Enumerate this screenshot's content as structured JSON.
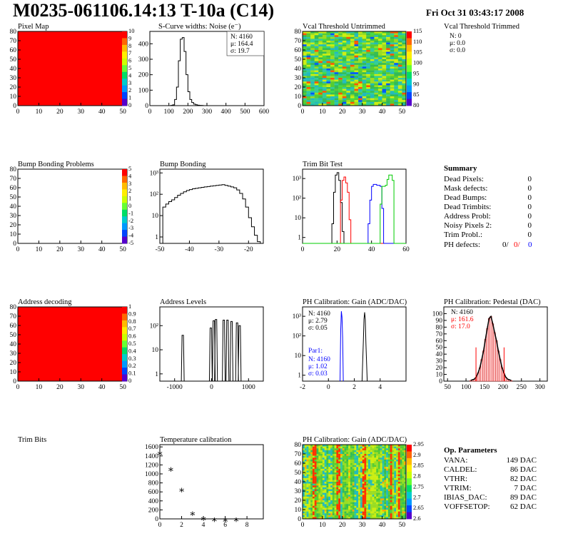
{
  "header": {
    "title": "M0235-061106.14:13 T-10a (C14)",
    "date": "Fri Oct 31 03:43:17 2008"
  },
  "colors": {
    "red": "#ff0000",
    "blue": "#0000ff",
    "green": "#00cc00",
    "black": "#000000"
  },
  "panels": {
    "pixel_map": {
      "title": "Pixel Map",
      "xticks": [
        "0",
        "10",
        "20",
        "30",
        "40",
        "50"
      ],
      "yticks": [
        "0",
        "10",
        "20",
        "30",
        "40",
        "50",
        "60",
        "70",
        "80"
      ],
      "palette_labels": [
        "10",
        "9",
        "8",
        "7",
        "6",
        "5",
        "4",
        "3",
        "2",
        "1",
        "0"
      ]
    },
    "scurve": {
      "title": "S-Curve widths: Noise (e⁻)",
      "stats": [
        "N: 4160",
        "μ: 164.4",
        "σ: 19.7"
      ],
      "xticks": [
        "0",
        "100",
        "200",
        "300",
        "400",
        "500",
        "600"
      ],
      "yticks": [
        "0",
        "100",
        "200",
        "300",
        "400"
      ]
    },
    "vcal_untrimmed": {
      "title": "Vcal Threshold Untrimmed",
      "xticks": [
        "0",
        "10",
        "20",
        "30",
        "40",
        "50"
      ],
      "yticks": [
        "0",
        "10",
        "20",
        "30",
        "40",
        "50",
        "60",
        "70",
        "80"
      ],
      "palette_labels": [
        "115",
        "110",
        "105",
        "100",
        "95",
        "90",
        "85",
        "80"
      ]
    },
    "vcal_trimmed": {
      "title": "Vcal Threshold Trimmed",
      "stats": [
        "N:    0",
        "μ:  0.0",
        "σ:  0.0"
      ]
    },
    "bump_problems": {
      "title": "Bump Bonding Problems",
      "xticks": [
        "0",
        "10",
        "20",
        "30",
        "40",
        "50"
      ],
      "yticks": [
        "0",
        "10",
        "20",
        "30",
        "40",
        "50",
        "60",
        "70",
        "80"
      ],
      "palette_labels": [
        "5",
        "4",
        "3",
        "2",
        "1",
        "0",
        "-1",
        "-2",
        "-3",
        "-4",
        "-5"
      ]
    },
    "bump_bonding": {
      "title": "Bump Bonding",
      "xticks": [
        "-50",
        "-40",
        "-30",
        "-20"
      ],
      "yticks": [
        "1",
        "10",
        "10²",
        "10³"
      ]
    },
    "trim_bit_test": {
      "title": "Trim Bit Test",
      "xticks": [
        "0",
        "20",
        "40",
        "60"
      ],
      "yticks": [
        "1",
        "10",
        "10²",
        "10³"
      ]
    },
    "summary": {
      "title": "Summary",
      "rows": [
        {
          "label": "Dead Pixels:",
          "value": "0"
        },
        {
          "label": "Mask defects:",
          "value": "0"
        },
        {
          "label": "Dead Bumps:",
          "value": "0"
        },
        {
          "label": "Dead Trimbits:",
          "value": "0"
        },
        {
          "label": "Address Probl:",
          "value": "0"
        },
        {
          "label": "Noisy Pixels 2:",
          "value": "0"
        },
        {
          "label": "Trim Probl.:",
          "value": "0"
        }
      ],
      "ph_label": "PH defects:",
      "ph_values": [
        "0/",
        "0/",
        "0"
      ]
    },
    "address_decoding": {
      "title": "Address decoding",
      "xticks": [
        "0",
        "10",
        "20",
        "30",
        "40",
        "50"
      ],
      "yticks": [
        "0",
        "10",
        "20",
        "30",
        "40",
        "50",
        "60",
        "70",
        "80"
      ],
      "palette_labels": [
        "1",
        "0.9",
        "0.8",
        "0.7",
        "0.6",
        "0.5",
        "0.4",
        "0.3",
        "0.2",
        "0.1",
        "0"
      ]
    },
    "address_levels": {
      "title": "Address Levels",
      "xticks": [
        "-1000",
        "0",
        "1000"
      ],
      "yticks": [
        "1",
        "10",
        "10²"
      ]
    },
    "ph_gain": {
      "title": "PH Calibration: Gain (ADC/DAC)",
      "stats": [
        "N: 4160",
        "μ: 2.79",
        "σ: 0.05"
      ],
      "par_stats": [
        "Par1:",
        "N: 4160",
        "μ: 1.02",
        "σ: 0.03"
      ],
      "xticks": [
        "-2",
        "0",
        "2",
        "4"
      ],
      "yticks": [
        "1",
        "10",
        "10²",
        "10³"
      ]
    },
    "ph_pedestal": {
      "title": "PH Calibration: Pedestal (DAC)",
      "stats": [
        "N: 4160",
        "μ: 161.6",
        "σ: 17.0"
      ],
      "xticks": [
        "50",
        "100",
        "150",
        "200",
        "250",
        "300"
      ],
      "yticks": [
        "0",
        "10",
        "20",
        "30",
        "40",
        "50",
        "60",
        "70",
        "80",
        "90",
        "100"
      ]
    },
    "trim_bits": {
      "title": "Trim Bits"
    },
    "temperature": {
      "title": "Temperature calibration",
      "xticks": [
        "0",
        "2",
        "4",
        "6",
        "8"
      ],
      "yticks": [
        "0",
        "200",
        "400",
        "600",
        "800",
        "1000",
        "1200",
        "1400",
        "1600"
      ]
    },
    "ph_gain_map": {
      "title": "PH Calibration: Gain (ADC/DAC)",
      "xticks": [
        "0",
        "10",
        "20",
        "30",
        "40",
        "50"
      ],
      "yticks": [
        "0",
        "10",
        "20",
        "30",
        "40",
        "50",
        "60",
        "70",
        "80"
      ],
      "palette_labels": [
        "2.95",
        "2.9",
        "2.85",
        "2.8",
        "2.75",
        "2.7",
        "2.65",
        "2.6"
      ]
    },
    "op_params": {
      "title": "Op. Parameters",
      "rows": [
        {
          "label": "VANA:",
          "value": "149 DAC"
        },
        {
          "label": "CALDEL:",
          "value": "86 DAC"
        },
        {
          "label": "VTHR:",
          "value": "82 DAC"
        },
        {
          "label": "VTRIM:",
          "value": "7 DAC"
        },
        {
          "label": "IBIAS_DAC:",
          "value": "89 DAC"
        },
        {
          "label": "VOFFSETOP:",
          "value": "62 DAC"
        }
      ]
    }
  },
  "chart_data": [
    {
      "type": "heatmap",
      "title": "Pixel Map",
      "xlim": [
        0,
        52
      ],
      "ylim": [
        0,
        80
      ],
      "fill": "uniform red (value 10)",
      "zlim": [
        0,
        10
      ]
    },
    {
      "type": "bar",
      "title": "S-Curve widths: Noise (e⁻)",
      "xlim": [
        0,
        600
      ],
      "ylim": [
        0,
        480
      ],
      "x": [
        100,
        110,
        120,
        130,
        140,
        150,
        160,
        170,
        180,
        190,
        200,
        210,
        220,
        230,
        240,
        250,
        260,
        270,
        280
      ],
      "values": [
        0,
        2,
        5,
        40,
        120,
        290,
        430,
        440,
        350,
        200,
        90,
        40,
        20,
        10,
        6,
        3,
        2,
        1,
        0
      ]
    },
    {
      "type": "heatmap",
      "title": "Vcal Threshold Untrimmed",
      "xlim": [
        0,
        52
      ],
      "ylim": [
        0,
        80
      ],
      "zlim": [
        80,
        118
      ],
      "fill": "noisy values centred near 100"
    },
    {
      "type": "heatmap",
      "title": "Bump Bonding Problems",
      "xlim": [
        0,
        52
      ],
      "ylim": [
        0,
        80
      ],
      "zlim": [
        -5,
        5
      ],
      "fill": "empty"
    },
    {
      "type": "bar",
      "title": "Bump Bonding",
      "log_y": true,
      "xlim": [
        -50,
        -15
      ],
      "ylim": [
        0.5,
        1500
      ],
      "x": [
        -49,
        -48,
        -47,
        -46,
        -45,
        -44,
        -43,
        -42,
        -41,
        -40,
        -39,
        -38,
        -37,
        -36,
        -35,
        -34,
        -33,
        -32,
        -31,
        -30,
        -29,
        -28,
        -27,
        -26,
        -25,
        -24,
        -23,
        -22,
        -21,
        -20,
        -19,
        -18,
        -17
      ],
      "values": [
        25,
        35,
        45,
        55,
        70,
        90,
        110,
        130,
        150,
        165,
        180,
        190,
        200,
        210,
        220,
        230,
        240,
        250,
        260,
        270,
        280,
        260,
        240,
        220,
        200,
        160,
        110,
        60,
        25,
        8,
        3,
        1.2,
        0.6
      ]
    },
    {
      "type": "line",
      "title": "Trim Bit Test",
      "log_y": true,
      "xlim": [
        0,
        60
      ],
      "ylim": [
        0.5,
        3000
      ],
      "series": [
        {
          "color": "#000000",
          "x": [
            16,
            17,
            18,
            19,
            20,
            21,
            22,
            23,
            24
          ],
          "values": [
            0.5,
            5,
            200,
            1500,
            2000,
            800,
            60,
            2,
            0.5
          ]
        },
        {
          "color": "#ff0000",
          "x": [
            21,
            22,
            23,
            24,
            25,
            26,
            27,
            28
          ],
          "values": [
            0.5,
            80,
            800,
            1200,
            600,
            200,
            8,
            0.5
          ]
        },
        {
          "color": "#0000ff",
          "x": [
            37,
            38,
            39,
            40,
            41,
            42,
            43,
            44,
            45,
            46,
            47
          ],
          "values": [
            0.5,
            5,
            80,
            400,
            500,
            500,
            450,
            450,
            400,
            30,
            0.5
          ]
        },
        {
          "color": "#00cc00",
          "x": [
            44,
            45,
            46,
            47,
            48,
            49,
            50,
            51,
            52,
            53
          ],
          "values": [
            0.5,
            50,
            400,
            400,
            450,
            900,
            1500,
            1500,
            800,
            0.5
          ]
        }
      ]
    },
    {
      "type": "heatmap",
      "title": "Address decoding",
      "xlim": [
        0,
        52
      ],
      "ylim": [
        0,
        80
      ],
      "zlim": [
        0,
        1
      ],
      "fill": "uniform red (value 1)"
    },
    {
      "type": "bar",
      "title": "Address Levels",
      "log_y": true,
      "xlim": [
        -1400,
        1400
      ],
      "ylim": [
        0.5,
        600
      ],
      "x": [
        -780,
        -20,
        60,
        120,
        330,
        430,
        540,
        690,
        760
      ],
      "values": [
        40,
        80,
        160,
        180,
        170,
        170,
        150,
        130,
        100
      ]
    },
    {
      "type": "line",
      "title": "PH Calibration: Gain (ADC/DAC)",
      "log_y": true,
      "xlim": [
        -2,
        6
      ],
      "ylim": [
        0.5,
        3000
      ],
      "series": [
        {
          "color": "#000000",
          "x": [
            2.6,
            2.7,
            2.75,
            2.8,
            2.85,
            2.9,
            3.0
          ],
          "values": [
            0.5,
            50,
            700,
            1600,
            700,
            40,
            0.5
          ]
        },
        {
          "color": "#0000ff",
          "x": [
            0.9,
            0.95,
            1.0,
            1.05,
            1.1,
            1.15
          ],
          "values": [
            0.5,
            200,
            1800,
            900,
            80,
            0.5
          ]
        }
      ]
    },
    {
      "type": "bar",
      "title": "PH Calibration: Pedestal (DAC)",
      "xlim": [
        40,
        320
      ],
      "ylim": [
        0,
        110
      ],
      "x": [
        110,
        115,
        120,
        125,
        130,
        135,
        140,
        145,
        150,
        155,
        160,
        165,
        170,
        175,
        180,
        185,
        190,
        195,
        200,
        205,
        210,
        215,
        220
      ],
      "values": [
        1,
        2,
        3,
        6,
        12,
        20,
        32,
        45,
        62,
        78,
        93,
        96,
        85,
        72,
        60,
        45,
        32,
        20,
        12,
        6,
        3,
        2,
        1
      ]
    },
    {
      "type": "scatter",
      "title": "Temperature calibration",
      "xlim": [
        0,
        9.5
      ],
      "ylim": [
        0,
        1650
      ],
      "x": [
        0,
        1,
        2,
        3,
        4,
        5,
        6,
        7
      ],
      "values": [
        1480,
        1130,
        670,
        140,
        30,
        10,
        0,
        10
      ]
    },
    {
      "type": "heatmap",
      "title": "PH Calibration: Gain (ADC/DAC)",
      "xlim": [
        0,
        52
      ],
      "ylim": [
        0,
        80
      ],
      "zlim": [
        2.58,
        2.98
      ],
      "fill": "columns with varying gain, red stripes near columns 5-6, 17-18, 30-31"
    }
  ]
}
